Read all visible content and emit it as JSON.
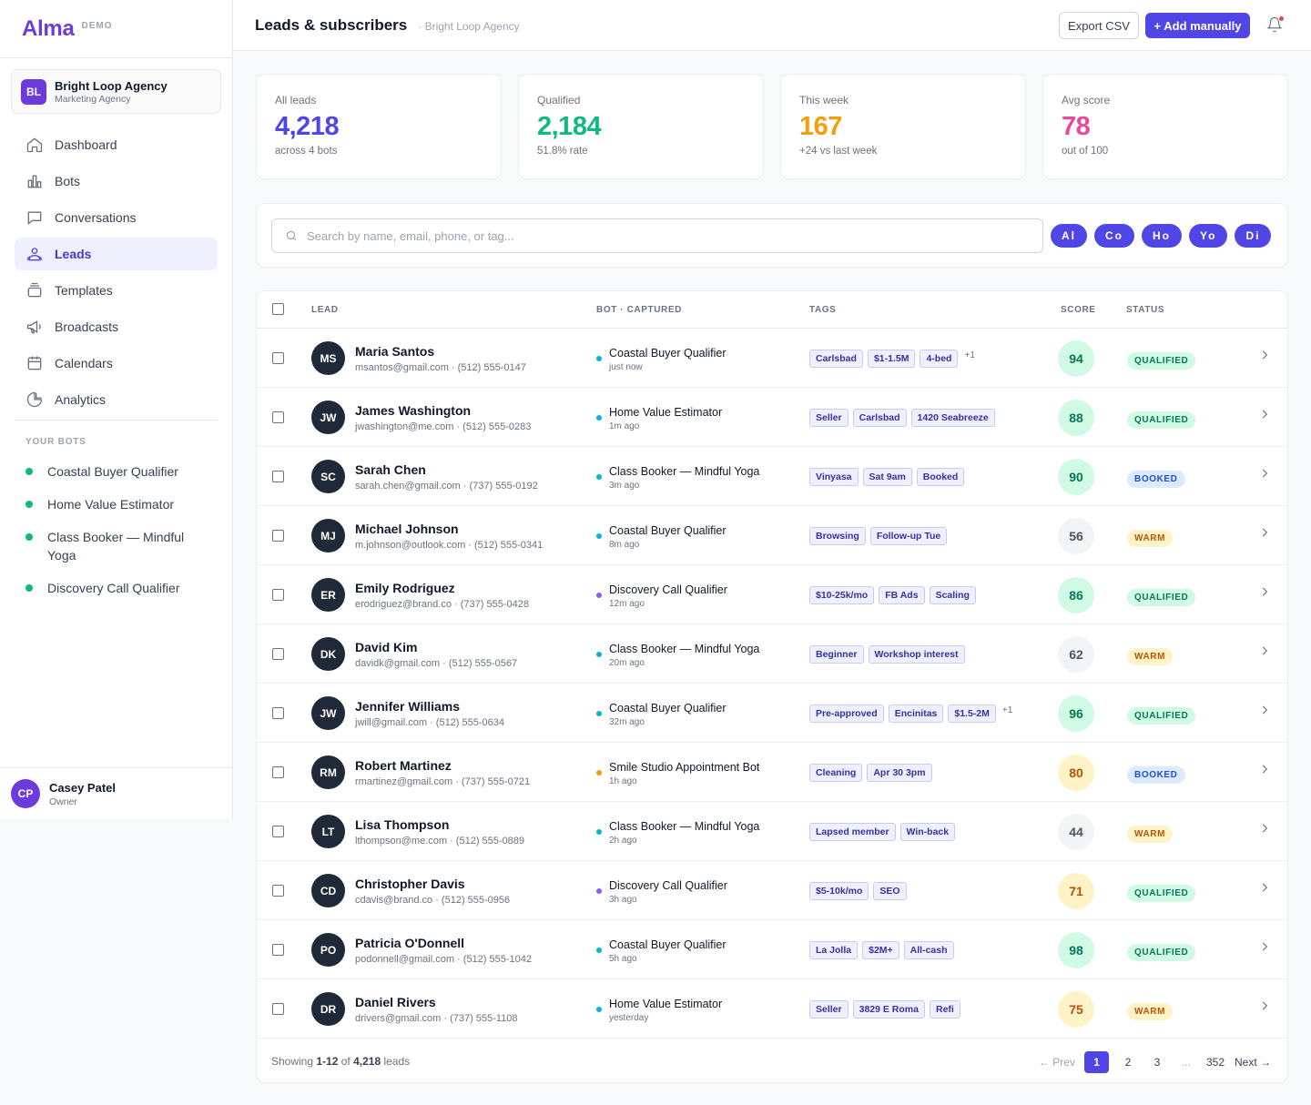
{
  "brand": {
    "name": "Alma",
    "tag": "DEMO"
  },
  "org": {
    "initials": "BL",
    "name": "Bright Loop Agency",
    "type": "Marketing Agency"
  },
  "nav": [
    {
      "label": "Dashboard",
      "icon": "home-icon"
    },
    {
      "label": "Bots",
      "icon": "bar-chart-icon"
    },
    {
      "label": "Conversations",
      "icon": "chat-icon"
    },
    {
      "label": "Leads",
      "icon": "users-icon",
      "active": true
    },
    {
      "label": "Templates",
      "icon": "stack-icon"
    },
    {
      "label": "Broadcasts",
      "icon": "megaphone-icon"
    },
    {
      "label": "Calendars",
      "icon": "calendar-icon"
    },
    {
      "label": "Analytics",
      "icon": "pie-icon"
    }
  ],
  "bots_heading": "YOUR BOTS",
  "bots": [
    "Coastal Buyer Qualifier",
    "Home Value Estimator",
    "Class Booker — Mindful Yoga",
    "Discovery Call Qualifier"
  ],
  "user": {
    "initials": "CP",
    "name": "Casey Patel",
    "role": "Owner"
  },
  "header": {
    "title": "Leads & subscribers",
    "subtitle": "· Bright Loop Agency",
    "export_label": "Export CSV",
    "add_label": "+ Add manually"
  },
  "stats": [
    {
      "label": "All leads",
      "value": "4,218",
      "sub": "across 4 bots",
      "color": "#4f46e5"
    },
    {
      "label": "Qualified",
      "value": "2,184",
      "sub": "51.8% rate",
      "color": "#10b981"
    },
    {
      "label": "This week",
      "value": "167",
      "sub": "+24 vs last week",
      "color": "#f59e0b"
    },
    {
      "label": "Avg score",
      "value": "78",
      "sub": "out of 100",
      "color": "#ec4899"
    }
  ],
  "search": {
    "placeholder": "Search by name, email, phone, or tag..."
  },
  "filters": [
    "Al",
    "Co",
    "Ho",
    "Yo",
    "Di"
  ],
  "columns": {
    "lead": "LEAD",
    "bot": "BOT · CAPTURED",
    "tags": "TAGS",
    "score": "SCORE",
    "status": "STATUS"
  },
  "leads": [
    {
      "initials": "MS",
      "name": "Maria Santos",
      "contact": "msantos@gmail.com · (512) 555-0147",
      "bot": "Coastal Buyer Qualifier",
      "bot_color": "#06b6d4",
      "time": "just now",
      "tags": [
        "Carlsbad",
        "$1-1.5M",
        "4-bed"
      ],
      "more": "+1",
      "score": "94",
      "score_level": "high",
      "status": "QUALIFIED"
    },
    {
      "initials": "JW",
      "name": "James Washington",
      "contact": "jwashington@me.com · (512) 555-0283",
      "bot": "Home Value Estimator",
      "bot_color": "#06b6d4",
      "time": "1m ago",
      "tags": [
        "Seller",
        "Carlsbad",
        "1420 Seabreeze"
      ],
      "more": "",
      "score": "88",
      "score_level": "high",
      "status": "QUALIFIED"
    },
    {
      "initials": "SC",
      "name": "Sarah Chen",
      "contact": "sarah.chen@gmail.com · (737) 555-0192",
      "bot": "Class Booker — Mindful Yoga",
      "bot_color": "#06b6d4",
      "time": "3m ago",
      "tags": [
        "Vinyasa",
        "Sat 9am",
        "Booked"
      ],
      "more": "",
      "score": "90",
      "score_level": "high",
      "status": "BOOKED"
    },
    {
      "initials": "MJ",
      "name": "Michael Johnson",
      "contact": "m.johnson@outlook.com · (512) 555-0341",
      "bot": "Coastal Buyer Qualifier",
      "bot_color": "#06b6d4",
      "time": "8m ago",
      "tags": [
        "Browsing",
        "Follow-up Tue"
      ],
      "more": "",
      "score": "56",
      "score_level": "low",
      "status": "WARM"
    },
    {
      "initials": "ER",
      "name": "Emily Rodriguez",
      "contact": "erodriguez@brand.co · (737) 555-0428",
      "bot": "Discovery Call Qualifier",
      "bot_color": "#8b5cf6",
      "time": "12m ago",
      "tags": [
        "$10-25k/mo",
        "FB Ads",
        "Scaling"
      ],
      "more": "",
      "score": "86",
      "score_level": "high",
      "status": "QUALIFIED"
    },
    {
      "initials": "DK",
      "name": "David Kim",
      "contact": "davidk@gmail.com · (512) 555-0567",
      "bot": "Class Booker — Mindful Yoga",
      "bot_color": "#06b6d4",
      "time": "20m ago",
      "tags": [
        "Beginner",
        "Workshop interest"
      ],
      "more": "",
      "score": "62",
      "score_level": "low",
      "status": "WARM"
    },
    {
      "initials": "JW",
      "name": "Jennifer Williams",
      "contact": "jwill@gmail.com · (512) 555-0634",
      "bot": "Coastal Buyer Qualifier",
      "bot_color": "#06b6d4",
      "time": "32m ago",
      "tags": [
        "Pre-approved",
        "Encinitas",
        "$1.5-2M"
      ],
      "more": "+1",
      "score": "96",
      "score_level": "high",
      "status": "QUALIFIED"
    },
    {
      "initials": "RM",
      "name": "Robert Martinez",
      "contact": "rmartinez@gmail.com · (737) 555-0721",
      "bot": "Smile Studio Appointment Bot",
      "bot_color": "#f59e0b",
      "time": "1h ago",
      "tags": [
        "Cleaning",
        "Apr 30 3pm"
      ],
      "more": "",
      "score": "80",
      "score_level": "mid",
      "status": "BOOKED"
    },
    {
      "initials": "LT",
      "name": "Lisa Thompson",
      "contact": "lthompson@me.com · (512) 555-0889",
      "bot": "Class Booker — Mindful Yoga",
      "bot_color": "#06b6d4",
      "time": "2h ago",
      "tags": [
        "Lapsed member",
        "Win-back"
      ],
      "more": "",
      "score": "44",
      "score_level": "low",
      "status": "WARM"
    },
    {
      "initials": "CD",
      "name": "Christopher Davis",
      "contact": "cdavis@brand.co · (512) 555-0956",
      "bot": "Discovery Call Qualifier",
      "bot_color": "#8b5cf6",
      "time": "3h ago",
      "tags": [
        "$5-10k/mo",
        "SEO"
      ],
      "more": "",
      "score": "71",
      "score_level": "mid",
      "status": "QUALIFIED"
    },
    {
      "initials": "PO",
      "name": "Patricia O'Donnell",
      "contact": "podonnell@gmail.com · (512) 555-1042",
      "bot": "Coastal Buyer Qualifier",
      "bot_color": "#06b6d4",
      "time": "5h ago",
      "tags": [
        "La Jolla",
        "$2M+",
        "All-cash"
      ],
      "more": "",
      "score": "98",
      "score_level": "high",
      "status": "QUALIFIED"
    },
    {
      "initials": "DR",
      "name": "Daniel Rivers",
      "contact": "drivers@gmail.com · (737) 555-1108",
      "bot": "Home Value Estimator",
      "bot_color": "#06b6d4",
      "time": "yesterday",
      "tags": [
        "Seller",
        "3829 E Roma",
        "Refi"
      ],
      "more": "",
      "score": "75",
      "score_level": "mid",
      "status": "WARM"
    }
  ],
  "footer": {
    "showing_prefix": "Showing ",
    "range": "1-12",
    "of": " of ",
    "total": "4,218",
    "suffix": " leads"
  },
  "pagination": {
    "prev": "← Prev",
    "pages": [
      "1",
      "2",
      "3",
      "...",
      "352"
    ],
    "current": "1",
    "next": "Next →"
  }
}
